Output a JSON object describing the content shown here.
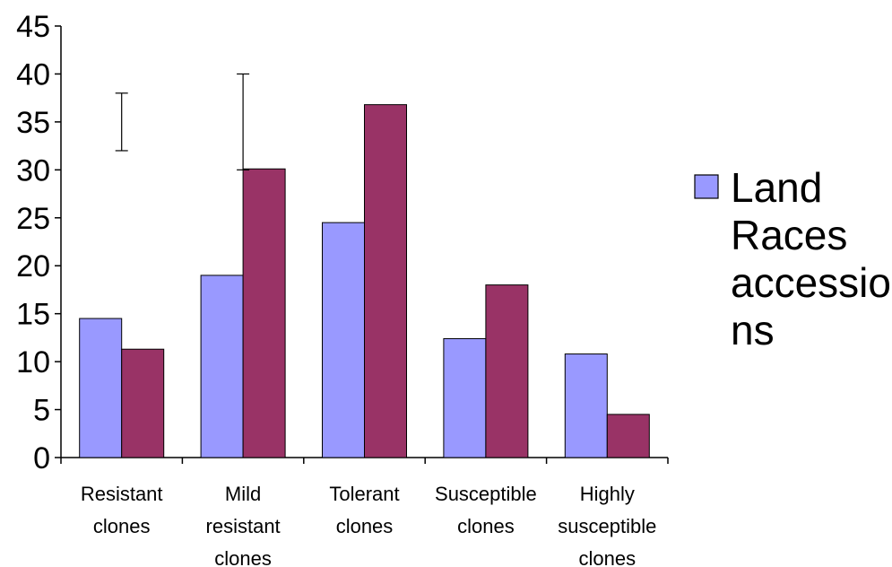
{
  "chart_data": {
    "type": "bar",
    "categories": [
      [
        "Resistant",
        "clones"
      ],
      [
        "Mild",
        "resistant",
        "clones"
      ],
      [
        "Tolerant",
        "clones"
      ],
      [
        "Susceptible",
        "clones"
      ],
      [
        "Highly",
        "susceptible",
        "clones"
      ]
    ],
    "series": [
      {
        "name": "Land Races accessions",
        "color": "#9999ff",
        "values": [
          14.5,
          19,
          24.5,
          12.4,
          10.8
        ]
      },
      {
        "color": "#993366",
        "values": [
          11.3,
          30.1,
          36.8,
          18,
          4.5
        ]
      }
    ],
    "error_bars": [
      {
        "category_index": 0,
        "low": 32,
        "high": 38
      },
      {
        "category_index": 1,
        "low": 30,
        "high": 40
      }
    ],
    "ylim": [
      0,
      45
    ],
    "yticks": [
      0,
      5,
      10,
      15,
      20,
      25,
      30,
      35,
      40,
      45
    ],
    "legend": {
      "placement": "right",
      "lines": [
        "Land",
        "Races",
        "accessio",
        "ns"
      ]
    },
    "grid": false
  }
}
